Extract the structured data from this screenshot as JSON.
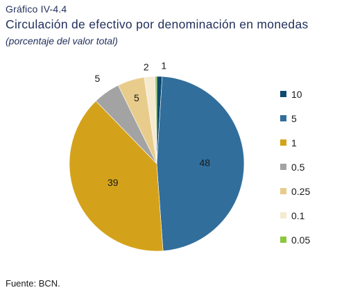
{
  "header": {
    "kicker": "Gráfico  IV-4.4",
    "title": "Circulación de efectivo por denominación en monedas",
    "subtitle": "(porcentaje del valor total)"
  },
  "footer": {
    "source": "Fuente: BCN."
  },
  "chart_data": {
    "type": "pie",
    "title": "Circulación de efectivo por denominación en monedas",
    "subtitle": "(porcentaje del valor total)",
    "legend_position": "right",
    "slices": [
      {
        "name": "10",
        "value": 1,
        "label": "1",
        "color": "#0d4a6f"
      },
      {
        "name": "5",
        "value": 48,
        "label": "48",
        "color": "#316e9c"
      },
      {
        "name": "1",
        "value": 39,
        "label": "39",
        "color": "#d4a21a"
      },
      {
        "name": "0.5",
        "value": 5,
        "label": "5",
        "color": "#a3a3a3"
      },
      {
        "name": "0.25",
        "value": 5,
        "label": "5",
        "color": "#e8cc8b"
      },
      {
        "name": "0.1",
        "value": 2,
        "label": "2",
        "color": "#f5ead0"
      },
      {
        "name": "0.05",
        "value": 0.3,
        "label": "",
        "color": "#8cc63f"
      }
    ]
  }
}
